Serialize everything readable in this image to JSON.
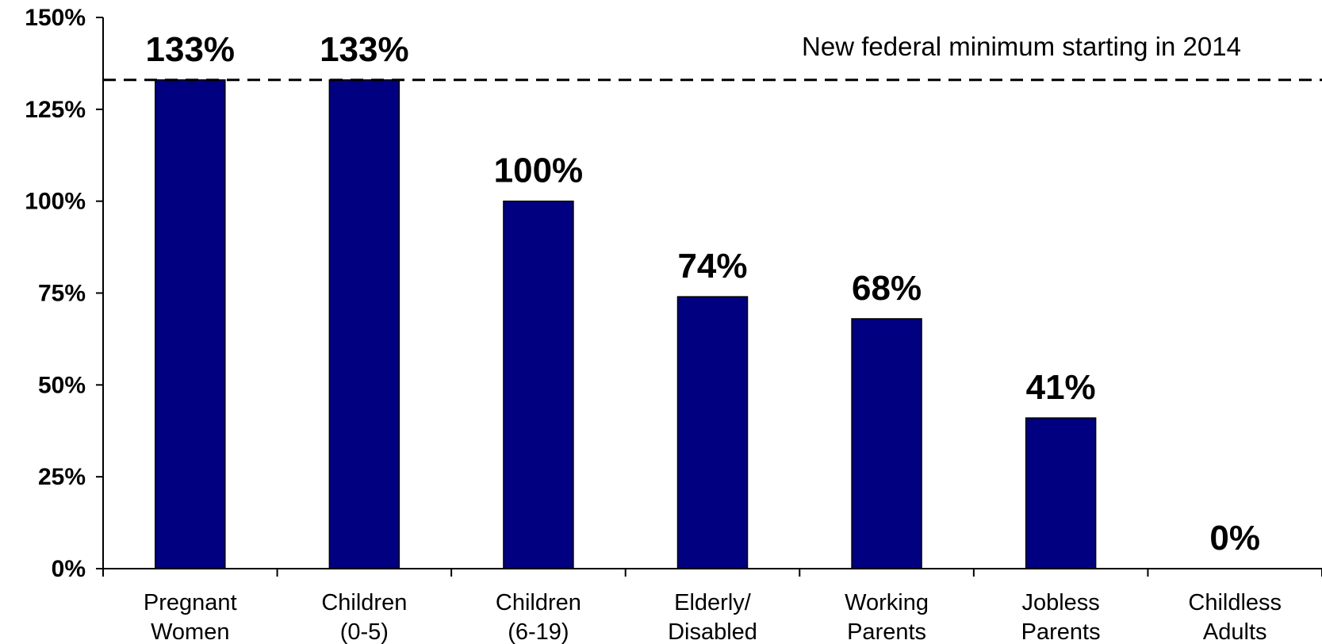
{
  "chart_data": {
    "type": "bar",
    "categories": [
      [
        "Pregnant",
        "Women"
      ],
      [
        "Children",
        "(0-5)"
      ],
      [
        "Children",
        "(6-19)"
      ],
      [
        "Elderly/",
        "Disabled"
      ],
      [
        "Working",
        "Parents"
      ],
      [
        "Jobless",
        "Parents"
      ],
      [
        "Childless",
        "Adults"
      ]
    ],
    "values": [
      133,
      133,
      100,
      74,
      68,
      41,
      0
    ],
    "data_labels": [
      "133%",
      "133%",
      "100%",
      "74%",
      "68%",
      "41%",
      "0%"
    ],
    "ylim": [
      0,
      150
    ],
    "yticks": [
      0,
      25,
      50,
      75,
      100,
      125,
      150
    ],
    "ytick_labels": [
      "0%",
      "25%",
      "50%",
      "75%",
      "100%",
      "125%",
      "150%"
    ],
    "reference_line": {
      "value": 133,
      "style": "dashed",
      "label": "New federal minimum starting in 2014"
    },
    "bar_color": "#000080",
    "grid": false,
    "legend": "none"
  }
}
